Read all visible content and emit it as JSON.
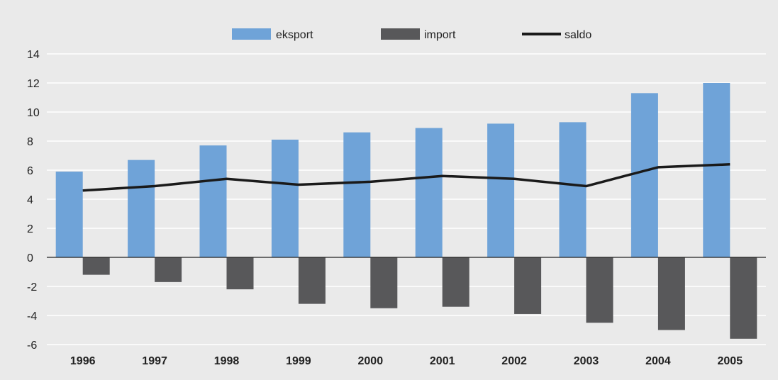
{
  "chart_data": {
    "type": "bar",
    "categories": [
      "1996",
      "1997",
      "1998",
      "1999",
      "2000",
      "2001",
      "2002",
      "2003",
      "2004",
      "2005"
    ],
    "series": [
      {
        "name": "eksport",
        "type": "bar",
        "color": "#6fa3d8",
        "values": [
          5.9,
          6.7,
          7.7,
          8.1,
          8.6,
          8.9,
          9.2,
          9.3,
          11.3,
          12.0
        ]
      },
      {
        "name": "import",
        "type": "bar",
        "color": "#58585a",
        "values": [
          -1.2,
          -1.7,
          -2.2,
          -3.2,
          -3.5,
          -3.4,
          -3.9,
          -4.5,
          -5.0,
          -5.6
        ]
      },
      {
        "name": "saldo",
        "type": "line",
        "color": "#1a1a1a",
        "values": [
          4.6,
          4.9,
          5.4,
          5.0,
          5.2,
          5.6,
          5.4,
          4.9,
          6.2,
          6.4
        ]
      }
    ],
    "ylim": [
      -6,
      14
    ],
    "yticks": [
      "-6",
      "-4",
      "-2",
      "0",
      "2",
      "4",
      "6",
      "8",
      "10",
      "12",
      "14"
    ],
    "grid": true,
    "legend_position": "top-center"
  }
}
